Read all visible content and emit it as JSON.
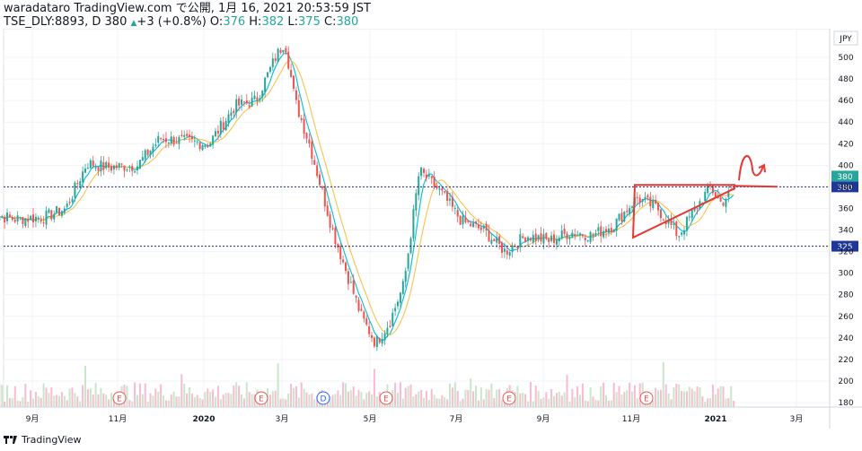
{
  "header": {
    "publisher": "waradataro TradingView.com で公開, 1月 16, 2021 20:53:59 JST",
    "symbol": "TSE_DLY:8893, D",
    "close_value": "380",
    "change": "+3 (+0.8%)",
    "open_label": "O:",
    "open_value": "376",
    "high_label": "H:",
    "high_value": "382",
    "low_label": "L:",
    "low_value": "375",
    "close_label": "C:",
    "close_value2": "380"
  },
  "footer": {
    "brand": "TradingView"
  },
  "colors": {
    "up": "#26a69a",
    "down": "#ef5350",
    "ma_fast": "#00bcd4",
    "ma_slow": "#f9c24d",
    "level_line": "#1a237e",
    "drawing": "#e53935",
    "last_price_badge": "#26a69a",
    "level_badge": "#1e3799"
  },
  "chart_data": {
    "type": "candlestick",
    "currency": "JPY",
    "x_tick_labels": [
      "9月",
      "11月",
      "2020",
      "3月",
      "5月",
      "7月",
      "9月",
      "11月",
      "2021",
      "3月"
    ],
    "y_tick_labels": [
      "180",
      "200",
      "220",
      "240",
      "260",
      "280",
      "300",
      "320",
      "340",
      "360",
      "380",
      "400",
      "420",
      "440",
      "460",
      "480",
      "500"
    ],
    "ylim": [
      175,
      515
    ],
    "price_path": [
      [
        "2019-08-01",
        355
      ],
      [
        "2019-08-20",
        350
      ],
      [
        "2019-09-10",
        352
      ],
      [
        "2019-09-25",
        360
      ],
      [
        "2019-10-10",
        402
      ],
      [
        "2019-10-25",
        398
      ],
      [
        "2019-11-15",
        400
      ],
      [
        "2019-12-01",
        425
      ],
      [
        "2019-12-20",
        422
      ],
      [
        "2020-01-05",
        420
      ],
      [
        "2020-01-25",
        455
      ],
      [
        "2020-02-10",
        460
      ],
      [
        "2020-02-25",
        500
      ],
      [
        "2020-03-03",
        515
      ],
      [
        "2020-03-10",
        460
      ],
      [
        "2020-03-20",
        420
      ],
      [
        "2020-04-05",
        340
      ],
      [
        "2020-04-15",
        300
      ],
      [
        "2020-04-25",
        260
      ],
      [
        "2020-05-05",
        235
      ],
      [
        "2020-05-15",
        255
      ],
      [
        "2020-05-25",
        290
      ],
      [
        "2020-06-05",
        395
      ],
      [
        "2020-06-20",
        375
      ],
      [
        "2020-07-05",
        348
      ],
      [
        "2020-07-20",
        340
      ],
      [
        "2020-08-05",
        320
      ],
      [
        "2020-08-20",
        335
      ],
      [
        "2020-09-05",
        330
      ],
      [
        "2020-09-20",
        338
      ],
      [
        "2020-10-05",
        335
      ],
      [
        "2020-10-20",
        345
      ],
      [
        "2020-11-05",
        370
      ],
      [
        "2020-11-20",
        360
      ],
      [
        "2020-12-05",
        335
      ],
      [
        "2020-12-15",
        355
      ],
      [
        "2020-12-28",
        380
      ],
      [
        "2021-01-05",
        365
      ],
      [
        "2021-01-16",
        380
      ]
    ],
    "horizontal_levels": [
      {
        "value": 380,
        "label": "380"
      },
      {
        "value": 325,
        "label": "325"
      }
    ],
    "last_price": {
      "value": 380,
      "label": "380"
    },
    "earnings_markers": [
      "E",
      "E",
      "D",
      "E",
      "E",
      "E"
    ]
  }
}
